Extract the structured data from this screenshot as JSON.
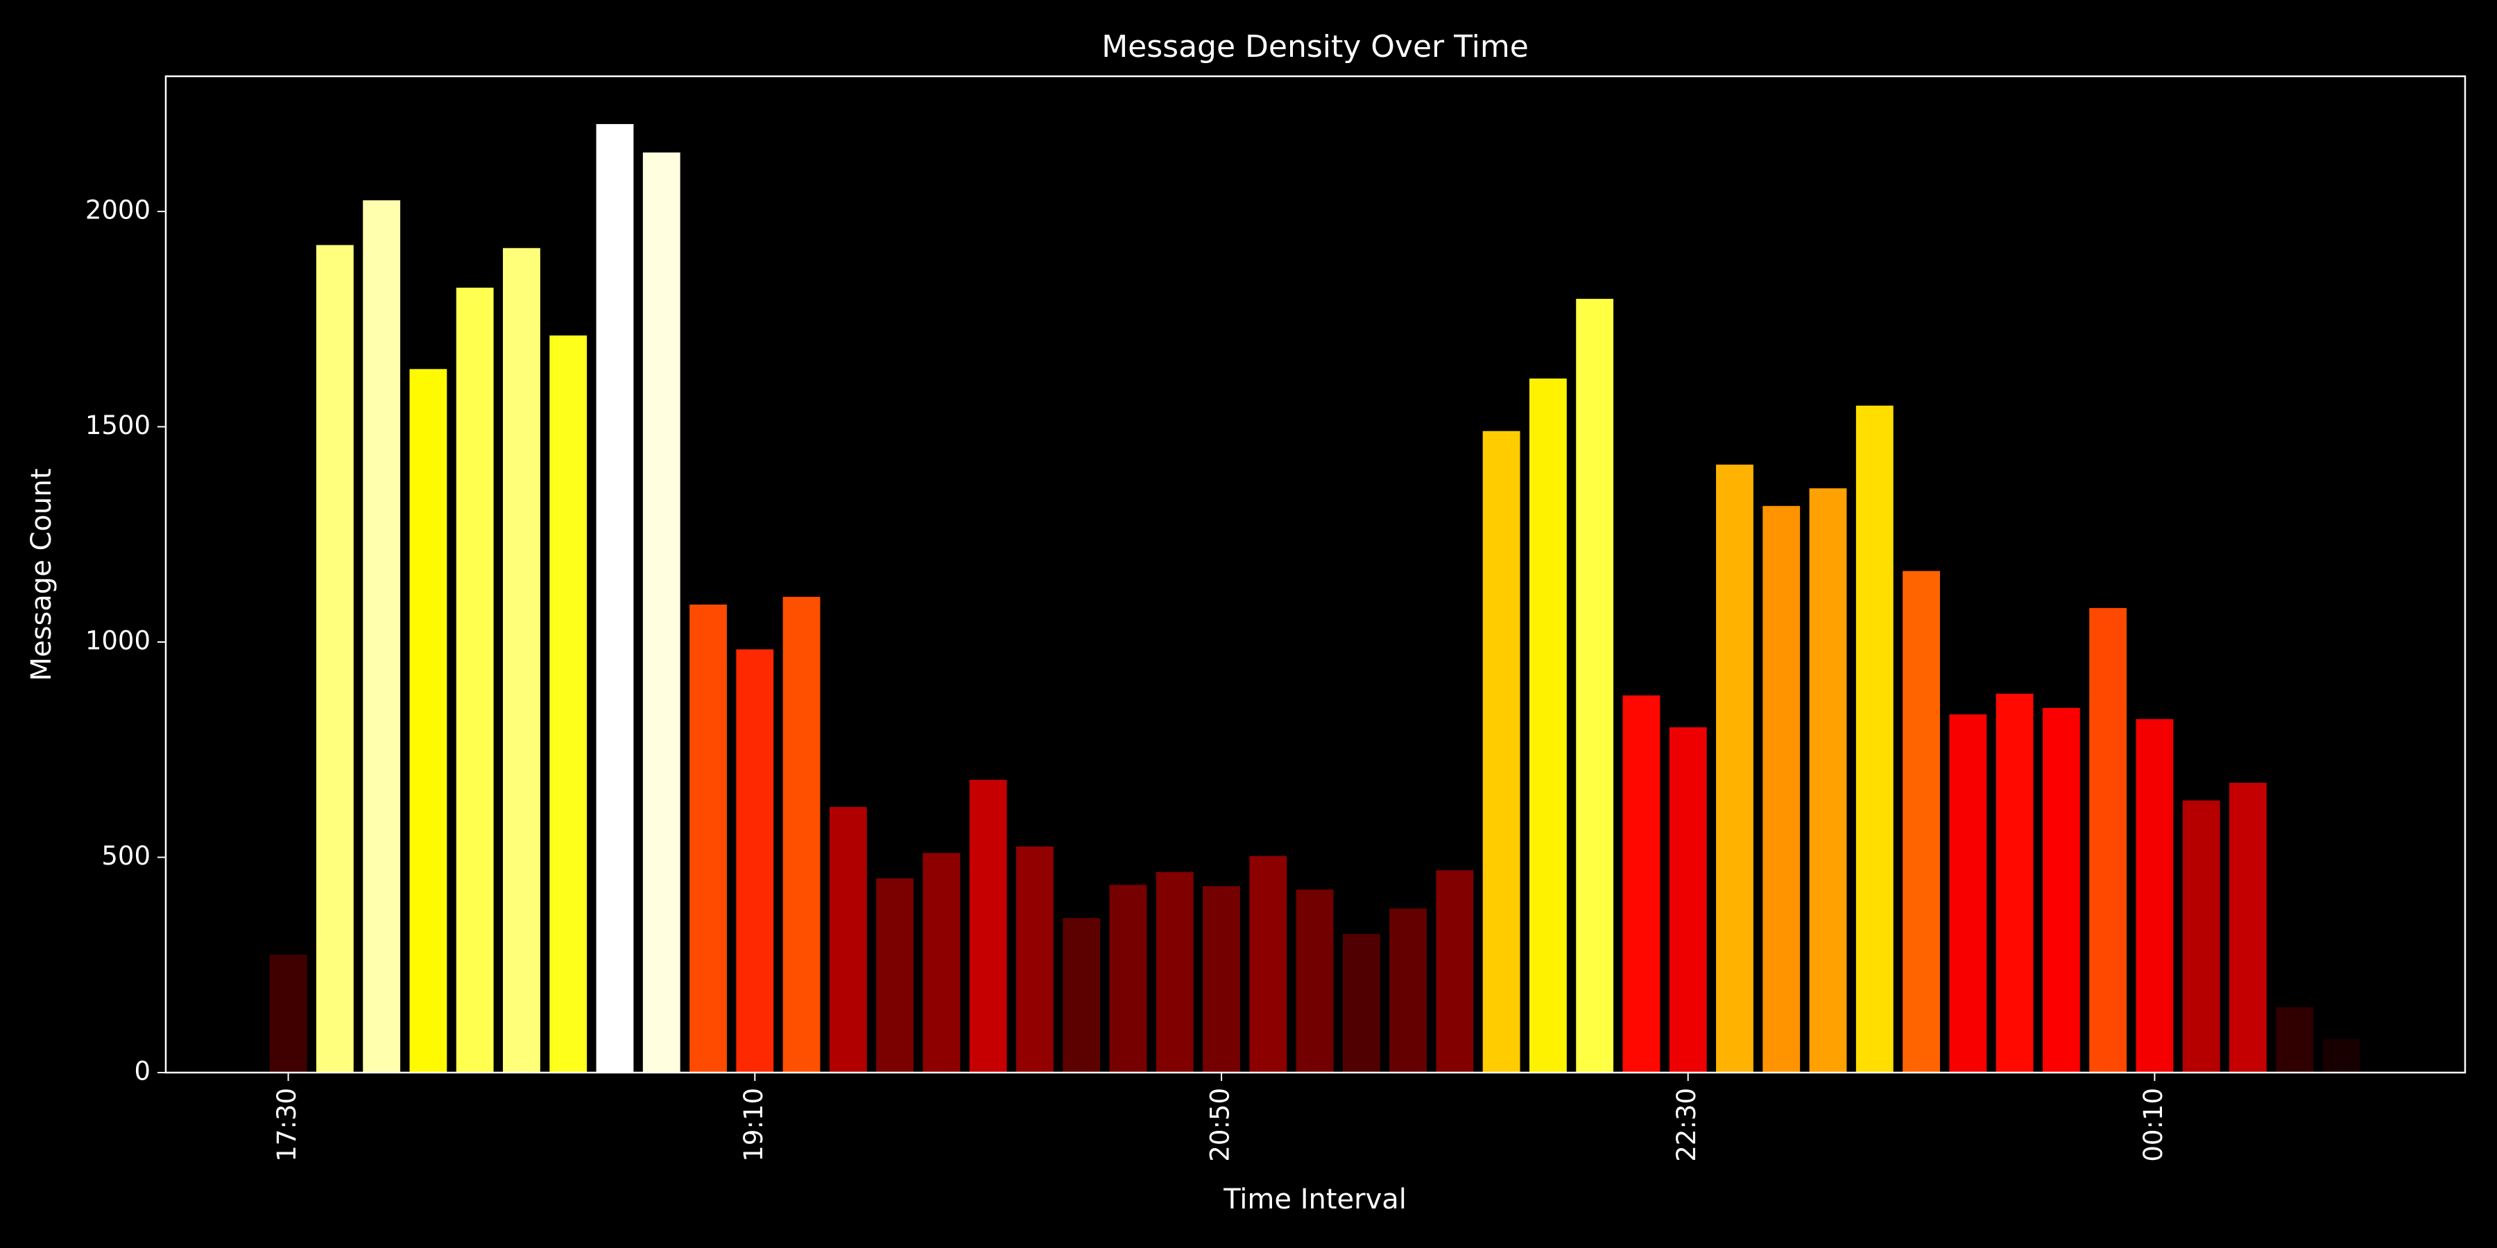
{
  "chart_data": {
    "type": "bar",
    "title": "Message Density Over Time",
    "x_label": "Time Interval",
    "y_label": "Message Count",
    "categories": [
      "17:30",
      null,
      null,
      null,
      null,
      null,
      null,
      null,
      null,
      null,
      "19:10",
      null,
      null,
      null,
      null,
      null,
      null,
      null,
      null,
      null,
      "20:50",
      null,
      null,
      null,
      null,
      null,
      null,
      null,
      null,
      null,
      "22:30",
      null,
      null,
      null,
      null,
      null,
      null,
      null,
      null,
      null,
      "00:10",
      null,
      null,
      null,
      null
    ],
    "values": [
      274,
      1922,
      2026,
      1634,
      1823,
      1915,
      1712,
      2203,
      2137,
      1087,
      983,
      1105,
      617,
      451,
      510,
      680,
      525,
      359,
      436,
      466,
      433,
      503,
      425,
      322,
      381,
      470,
      1490,
      1612,
      1797,
      876,
      802,
      1412,
      1316,
      1357,
      1549,
      1165,
      832,
      880,
      847,
      1079,
      821,
      632,
      673,
      152,
      78
    ],
    "colors": [
      "#400000",
      "#ffff7d",
      "#ffffad",
      "#fffa00",
      "#ffff50",
      "#ffff7a",
      "#ffff1c",
      "#ffffff",
      "#ffffe0",
      "#ff4b00",
      "#ff2900",
      "#ff5000",
      "#b10000",
      "#7b0000",
      "#8e0000",
      "#c60000",
      "#930000",
      "#5c0000",
      "#760000",
      "#800000",
      "#750000",
      "#8c0000",
      "#730000",
      "#500000",
      "#640000",
      "#820000",
      "#ffcc00",
      "#fff200",
      "#ffff43",
      "#ff0800",
      "#ee0000",
      "#ffb300",
      "#ff9400",
      "#ffa100",
      "#ffde00",
      "#ff6400",
      "#f80000",
      "#ff0900",
      "#fc0000",
      "#ff4800",
      "#f50000",
      "#b60000",
      "#c40000",
      "#300000",
      "#180000"
    ],
    "ylim": [
      0,
      2314
    ],
    "yticks": [
      0,
      500,
      1000,
      1500,
      2000
    ]
  }
}
